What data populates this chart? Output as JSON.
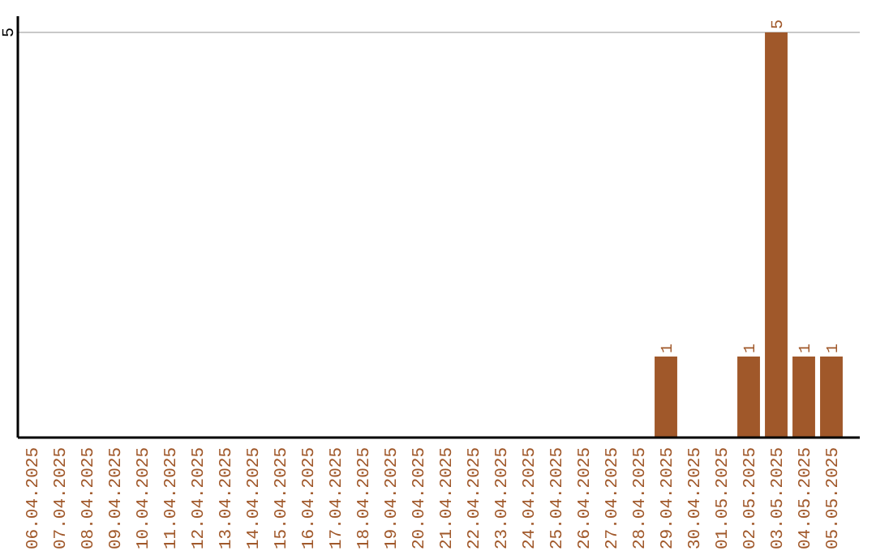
{
  "chart_data": {
    "type": "bar",
    "categories": [
      "06.04.2025",
      "07.04.2025",
      "08.04.2025",
      "09.04.2025",
      "10.04.2025",
      "11.04.2025",
      "12.04.2025",
      "13.04.2025",
      "14.04.2025",
      "15.04.2025",
      "16.04.2025",
      "17.04.2025",
      "18.04.2025",
      "19.04.2025",
      "20.04.2025",
      "21.04.2025",
      "22.04.2025",
      "23.04.2025",
      "24.04.2025",
      "25.04.2025",
      "26.04.2025",
      "27.04.2025",
      "28.04.2025",
      "29.04.2025",
      "30.04.2025",
      "01.05.2025",
      "02.05.2025",
      "03.05.2025",
      "04.05.2025",
      "05.05.2025"
    ],
    "series": [
      {
        "color": "#a0582a",
        "values": [
          null,
          null,
          null,
          null,
          null,
          null,
          null,
          null,
          null,
          null,
          null,
          null,
          null,
          null,
          null,
          null,
          null,
          null,
          null,
          null,
          null,
          null,
          null,
          1,
          null,
          null,
          1,
          5,
          1,
          1
        ]
      }
    ],
    "data_labels": true,
    "ylim": [
      0,
      5.2
    ],
    "ref_lines": [
      {
        "axis": "y",
        "value": 5,
        "label": "5",
        "color": "#c8c8c8"
      }
    ]
  }
}
